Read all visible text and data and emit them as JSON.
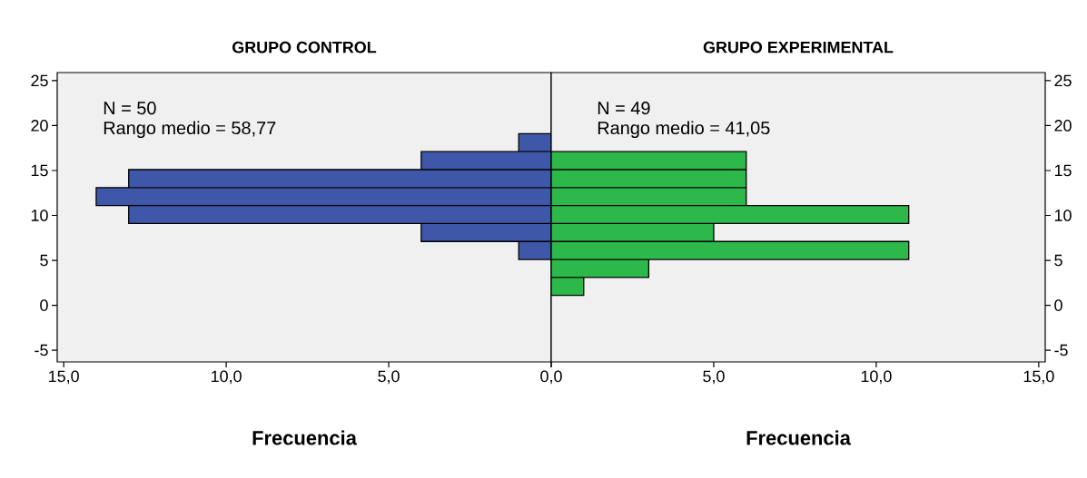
{
  "chart_data": [
    {
      "type": "histogram",
      "orientation": "horizontal",
      "title": "GRUPO CONTROL",
      "xlabel": "Frecuencia",
      "annotations": [
        "N = 50",
        "Rango medio = 58,77"
      ],
      "bins": [
        5.1,
        7.1,
        9.1,
        11.1,
        13.1,
        15.1,
        17.1,
        19.1
      ],
      "values": [
        1,
        4,
        13,
        14,
        13,
        4,
        1
      ],
      "color": "#3f57a8",
      "xlim": [
        15.2,
        0
      ],
      "ylim": [
        -6.3,
        25.9
      ],
      "xticks": [
        {
          "value": 15,
          "label": "15,0"
        },
        {
          "value": 10,
          "label": "10,0"
        },
        {
          "value": 5,
          "label": "5,0"
        },
        {
          "value": 0,
          "label": "0,0"
        }
      ],
      "yticks": [
        -5,
        0,
        5,
        10,
        15,
        20,
        25
      ]
    },
    {
      "type": "histogram",
      "orientation": "horizontal",
      "title": "GRUPO EXPERIMENTAL",
      "xlabel": "Frecuencia",
      "annotations": [
        "N = 49",
        "Rango medio = 41,05"
      ],
      "bins": [
        1.1,
        3.1,
        5.1,
        7.1,
        9.1,
        11.1,
        13.1,
        15.1,
        17.1
      ],
      "values": [
        1,
        3,
        11,
        5,
        11,
        6,
        6,
        6
      ],
      "color": "#2db84a",
      "xlim": [
        0,
        15.2
      ],
      "ylim": [
        -6.3,
        25.9
      ],
      "xticks": [
        {
          "value": 0,
          "label": null
        },
        {
          "value": 5,
          "label": "5,0"
        },
        {
          "value": 10,
          "label": "10,0"
        },
        {
          "value": 15,
          "label": "15,0"
        }
      ],
      "yticks": [
        -5,
        0,
        5,
        10,
        15,
        20,
        25
      ]
    }
  ]
}
